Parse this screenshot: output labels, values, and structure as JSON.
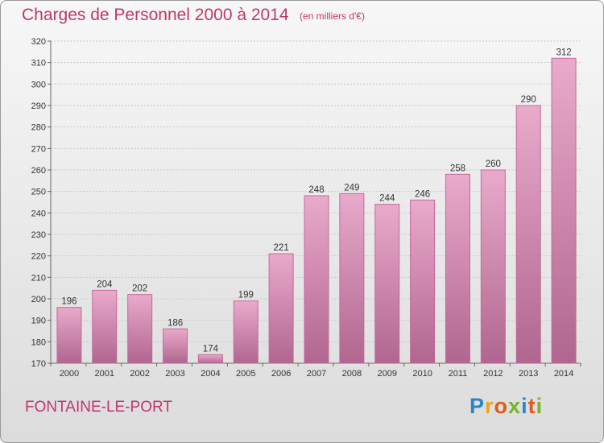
{
  "header": {
    "title": "Charges de Personnel 2000 à 2014",
    "subtitle": "(en milliers d'€)"
  },
  "footer": {
    "commune": "FONTAINE-LE-PORT",
    "logo_letters": [
      "P",
      "r",
      "o",
      "x",
      "i",
      "t",
      "i"
    ],
    "logo_colors": [
      "#2a86c8",
      "#f2a21c",
      "#e05a1a",
      "#74b52c",
      "#2a86c8",
      "#e05a1a",
      "#74b52c"
    ]
  },
  "colors": {
    "title": "#c0366e",
    "bar_top": "#e9aacb",
    "bar_bottom": "#b0668f",
    "bar_side": "#c46a96"
  },
  "chart_data": {
    "type": "bar",
    "title": "Charges de Personnel 2000 à 2014",
    "subtitle": "(en milliers d'€)",
    "xlabel": "",
    "ylabel": "",
    "categories": [
      "2000",
      "2001",
      "2002",
      "2003",
      "2004",
      "2005",
      "2006",
      "2007",
      "2008",
      "2009",
      "2010",
      "2011",
      "2012",
      "2013",
      "2014"
    ],
    "values": [
      196,
      204,
      202,
      186,
      174,
      199,
      221,
      248,
      249,
      244,
      246,
      258,
      260,
      290,
      312
    ],
    "ylim": [
      170,
      320
    ],
    "yticks": [
      170,
      180,
      190,
      200,
      210,
      220,
      230,
      240,
      250,
      260,
      270,
      280,
      290,
      300,
      310,
      320
    ],
    "grid": true,
    "legend": "none"
  }
}
